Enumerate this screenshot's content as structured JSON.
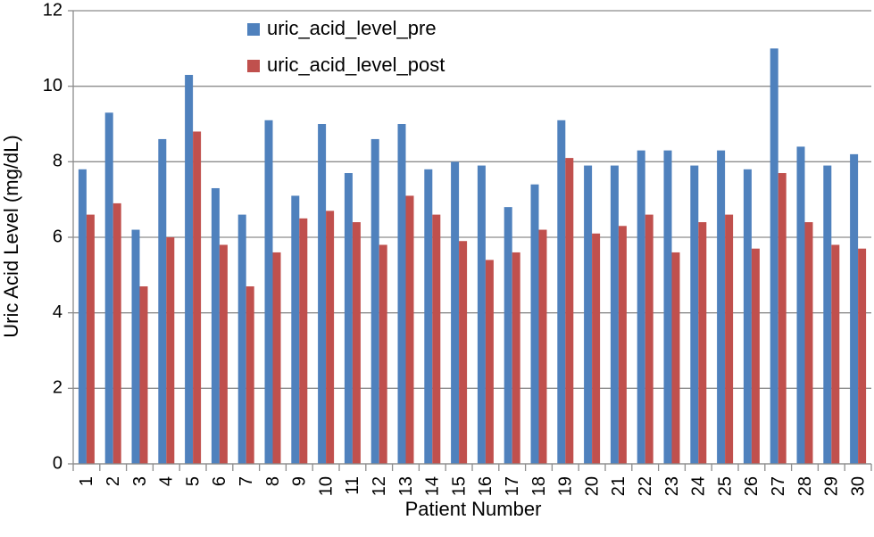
{
  "chart_data": {
    "type": "bar",
    "xlabel": "Patient Number",
    "ylabel": "Uric Acid Level (mg/dL)",
    "ylim": [
      0,
      12
    ],
    "yticks": [
      0,
      2,
      4,
      6,
      8,
      10,
      12
    ],
    "grid": "horizontal",
    "legend_position": "top-center",
    "categories": [
      "1",
      "2",
      "3",
      "4",
      "5",
      "6",
      "7",
      "8",
      "9",
      "10",
      "11",
      "12",
      "13",
      "14",
      "15",
      "16",
      "17",
      "18",
      "19",
      "20",
      "21",
      "22",
      "23",
      "24",
      "25",
      "26",
      "27",
      "28",
      "29",
      "30"
    ],
    "series": [
      {
        "name": "uric_acid_level_pre",
        "color": "#4F81BD",
        "values": [
          7.8,
          9.3,
          6.2,
          8.6,
          10.3,
          7.3,
          6.6,
          9.1,
          7.1,
          9.0,
          7.7,
          8.6,
          9.0,
          7.8,
          8.0,
          7.9,
          6.8,
          7.4,
          9.1,
          7.9,
          7.9,
          8.3,
          8.3,
          7.9,
          8.3,
          7.8,
          11.0,
          8.4,
          7.9,
          8.2
        ]
      },
      {
        "name": "uric_acid_level_post",
        "color": "#C0504D",
        "values": [
          6.6,
          6.9,
          4.7,
          6.0,
          8.8,
          5.8,
          4.7,
          5.6,
          6.5,
          6.7,
          6.4,
          5.8,
          7.1,
          6.6,
          5.9,
          5.4,
          5.6,
          6.2,
          8.1,
          6.1,
          6.3,
          6.6,
          5.6,
          6.4,
          6.6,
          5.7,
          7.7,
          6.4,
          5.8,
          5.7
        ]
      }
    ]
  }
}
